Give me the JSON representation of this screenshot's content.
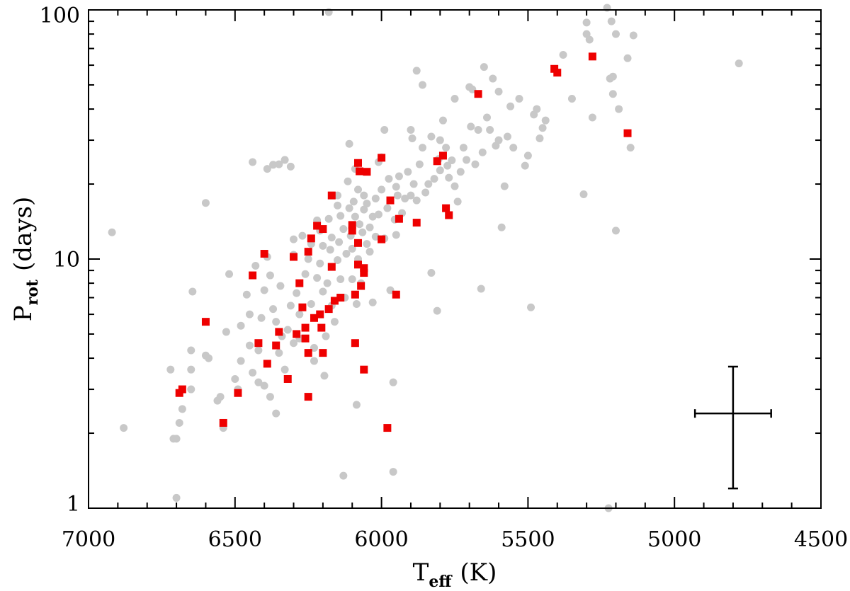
{
  "chart_data": {
    "type": "scatter",
    "xlabel": {
      "main": "T",
      "sub": "eff",
      "unit": "(K)"
    },
    "ylabel": {
      "main": "P",
      "sub": "rot",
      "unit": "(days)"
    },
    "xlim": [
      7000,
      4500
    ],
    "xaxis_reversed": true,
    "ylim": [
      1,
      100
    ],
    "yscale": "log",
    "x_ticks": [
      "7000",
      "6500",
      "6000",
      "5500",
      "5000",
      "4500"
    ],
    "y_ticks": [
      "1",
      "10",
      "100"
    ],
    "grid": false,
    "legend": "none",
    "colors": {
      "gray_series": "#c8c8c8",
      "red_series": "#ee0000",
      "axes": "#000000"
    },
    "series": [
      {
        "marker": "circle",
        "color": "#c8c8c8",
        "points": [
          [
            6920,
            12.8
          ],
          [
            6880,
            2.1
          ],
          [
            6720,
            3.6
          ],
          [
            6710,
            1.9
          ],
          [
            6700,
            1.9
          ],
          [
            6690,
            2.2
          ],
          [
            6680,
            2.5
          ],
          [
            6650,
            3.0
          ],
          [
            6650,
            3.6
          ],
          [
            6650,
            4.3
          ],
          [
            6645,
            7.4
          ],
          [
            6600,
            16.8
          ],
          [
            6600,
            4.1
          ],
          [
            6590,
            4.0
          ],
          [
            6560,
            2.7
          ],
          [
            6550,
            2.8
          ],
          [
            6540,
            2.1
          ],
          [
            6530,
            5.1
          ],
          [
            6520,
            8.7
          ],
          [
            6500,
            3.3
          ],
          [
            6490,
            3.0
          ],
          [
            6480,
            3.9
          ],
          [
            6480,
            5.4
          ],
          [
            6460,
            7.2
          ],
          [
            6450,
            6.0
          ],
          [
            6450,
            4.5
          ],
          [
            6440,
            3.5
          ],
          [
            6430,
            9.4
          ],
          [
            6420,
            4.3
          ],
          [
            6410,
            5.8
          ],
          [
            6400,
            3.1
          ],
          [
            6400,
            7.5
          ],
          [
            6390,
            23.0
          ],
          [
            6390,
            10.2
          ],
          [
            6380,
            8.6
          ],
          [
            6380,
            2.8
          ],
          [
            6370,
            6.3
          ],
          [
            6370,
            23.9
          ],
          [
            6360,
            5.6
          ],
          [
            6360,
            2.4
          ],
          [
            6350,
            4.2
          ],
          [
            6350,
            24.0
          ],
          [
            6345,
            7.8
          ],
          [
            6340,
            4.9
          ],
          [
            6330,
            3.6
          ],
          [
            6330,
            25.0
          ],
          [
            6320,
            5.2
          ],
          [
            6310,
            23.5
          ],
          [
            6310,
            6.5
          ],
          [
            6300,
            4.6
          ],
          [
            6300,
            10.4
          ],
          [
            6290,
            7.3
          ],
          [
            6280,
            6.0
          ],
          [
            6280,
            4.8
          ],
          [
            6270,
            12.4
          ],
          [
            6260,
            8.7
          ],
          [
            6260,
            5.3
          ],
          [
            6250,
            10.0
          ],
          [
            6240,
            11.5
          ],
          [
            6240,
            6.6
          ],
          [
            6230,
            4.4
          ],
          [
            6230,
            3.9
          ],
          [
            6220,
            8.4
          ],
          [
            6220,
            14.3
          ],
          [
            6210,
            9.6
          ],
          [
            6210,
            13.0
          ],
          [
            6200,
            7.4
          ],
          [
            6200,
            11.3
          ],
          [
            6195,
            3.4
          ],
          [
            6190,
            4.9
          ],
          [
            6185,
            8.0
          ],
          [
            6180,
            98.0
          ],
          [
            6180,
            14.5
          ],
          [
            6175,
            10.9
          ],
          [
            6170,
            12.2
          ],
          [
            6170,
            6.5
          ],
          [
            6160,
            5.6
          ],
          [
            6150,
            9.9
          ],
          [
            6150,
            16.4
          ],
          [
            6145,
            11.7
          ],
          [
            6140,
            8.3
          ],
          [
            6140,
            14.9
          ],
          [
            6130,
            1.35
          ],
          [
            6130,
            13.2
          ],
          [
            6125,
            7.0
          ],
          [
            6120,
            10.5
          ],
          [
            6115,
            20.5
          ],
          [
            6110,
            29.0
          ],
          [
            6110,
            16.0
          ],
          [
            6105,
            12.4
          ],
          [
            6100,
            8.3
          ],
          [
            6100,
            11.0
          ],
          [
            6095,
            17.0
          ],
          [
            6090,
            23.0
          ],
          [
            6090,
            14.8
          ],
          [
            6085,
            2.6
          ],
          [
            6085,
            6.6
          ],
          [
            6080,
            19.0
          ],
          [
            6080,
            10.0
          ],
          [
            6075,
            13.8
          ],
          [
            6070,
            22.5
          ],
          [
            6070,
            8.0
          ],
          [
            6065,
            12.8
          ],
          [
            6060,
            18.0
          ],
          [
            6060,
            15.8
          ],
          [
            6050,
            11.5
          ],
          [
            6050,
            16.7
          ],
          [
            6040,
            13.4
          ],
          [
            6040,
            10.7
          ],
          [
            6030,
            14.8
          ],
          [
            6030,
            6.7
          ],
          [
            6020,
            17.5
          ],
          [
            6020,
            12.3
          ],
          [
            6010,
            15.1
          ],
          [
            6010,
            24.5
          ],
          [
            6000,
            19.0
          ],
          [
            5990,
            33.0
          ],
          [
            5990,
            12.1
          ],
          [
            5980,
            16.0
          ],
          [
            5975,
            21.0
          ],
          [
            5970,
            7.5
          ],
          [
            5960,
            1.4
          ],
          [
            5960,
            3.2
          ],
          [
            5955,
            14.4
          ],
          [
            5950,
            12.5
          ],
          [
            5950,
            19.5
          ],
          [
            5945,
            18.0
          ],
          [
            5940,
            21.5
          ],
          [
            5930,
            15.3
          ],
          [
            5920,
            17.5
          ],
          [
            5910,
            22.4
          ],
          [
            5900,
            18.0
          ],
          [
            5895,
            30.5
          ],
          [
            5890,
            20.0
          ],
          [
            5880,
            57.0
          ],
          [
            5880,
            17.2
          ],
          [
            5870,
            24.0
          ],
          [
            5860,
            50.0
          ],
          [
            5860,
            28.0
          ],
          [
            5850,
            18.5
          ],
          [
            5840,
            20.0
          ],
          [
            5830,
            8.8
          ],
          [
            5830,
            31.0
          ],
          [
            5820,
            21.0
          ],
          [
            5810,
            6.2
          ],
          [
            5805,
            25.2
          ],
          [
            5800,
            22.7
          ],
          [
            5800,
            30.0
          ],
          [
            5790,
            36.0
          ],
          [
            5780,
            28.0
          ],
          [
            5775,
            23.7
          ],
          [
            5770,
            21.2
          ],
          [
            5760,
            24.9
          ],
          [
            5750,
            19.6
          ],
          [
            5740,
            17.0
          ],
          [
            5730,
            22.4
          ],
          [
            5720,
            28.0
          ],
          [
            5710,
            25.0
          ],
          [
            5700,
            49.0
          ],
          [
            5695,
            34.0
          ],
          [
            5690,
            48.0
          ],
          [
            5680,
            24.0
          ],
          [
            5670,
            33.0
          ],
          [
            5660,
            7.6
          ],
          [
            5655,
            26.8
          ],
          [
            5650,
            59.0
          ],
          [
            5640,
            37.0
          ],
          [
            5630,
            33.0
          ],
          [
            5620,
            53.0
          ],
          [
            5610,
            28.5
          ],
          [
            5600,
            30.0
          ],
          [
            5590,
            13.4
          ],
          [
            5580,
            19.6
          ],
          [
            5570,
            31.0
          ],
          [
            5560,
            41.0
          ],
          [
            5550,
            28.0
          ],
          [
            5530,
            44.0
          ],
          [
            5510,
            23.7
          ],
          [
            5490,
            6.4
          ],
          [
            5480,
            38.0
          ],
          [
            5470,
            40.0
          ],
          [
            5460,
            30.5
          ],
          [
            5450,
            33.6
          ],
          [
            5440,
            36.0
          ],
          [
            5380,
            66.0
          ],
          [
            5310,
            18.2
          ],
          [
            5300,
            89.0
          ],
          [
            5300,
            80.0
          ],
          [
            5290,
            76.0
          ],
          [
            5280,
            37.0
          ],
          [
            5220,
            53.0
          ],
          [
            5210,
            54.0
          ],
          [
            5210,
            46.0
          ],
          [
            5200,
            80.0
          ],
          [
            5200,
            13.0
          ],
          [
            5190,
            40.0
          ],
          [
            5160,
            64.0
          ],
          [
            5150,
            28.0
          ],
          [
            5140,
            79.0
          ],
          [
            5230,
            102.0
          ],
          [
            5215,
            90.0
          ],
          [
            5225,
            1.0
          ],
          [
            4780,
            61.0
          ],
          [
            6700,
            1.1
          ],
          [
            5500,
            26.0
          ],
          [
            5350,
            44.0
          ],
          [
            5600,
            47.0
          ],
          [
            5900,
            33.0
          ],
          [
            6440,
            24.5
          ],
          [
            6150,
            18.0
          ],
          [
            6000,
            25.6
          ],
          [
            5750,
            44.0
          ],
          [
            6420,
            3.2
          ],
          [
            6300,
            12.0
          ]
        ]
      },
      {
        "marker": "square",
        "color": "#ee0000",
        "points": [
          [
            6690,
            2.9
          ],
          [
            6680,
            3.0
          ],
          [
            6600,
            5.6
          ],
          [
            6540,
            2.2
          ],
          [
            6490,
            2.9
          ],
          [
            6440,
            8.6
          ],
          [
            6420,
            4.6
          ],
          [
            6400,
            10.5
          ],
          [
            6390,
            3.8
          ],
          [
            6360,
            4.5
          ],
          [
            6350,
            5.1
          ],
          [
            6320,
            3.3
          ],
          [
            6300,
            10.2
          ],
          [
            6290,
            5.0
          ],
          [
            6280,
            8.0
          ],
          [
            6270,
            6.4
          ],
          [
            6260,
            4.8
          ],
          [
            6260,
            5.3
          ],
          [
            6250,
            4.2
          ],
          [
            6250,
            10.7
          ],
          [
            6240,
            12.1
          ],
          [
            6230,
            5.8
          ],
          [
            6220,
            13.6
          ],
          [
            6210,
            6.0
          ],
          [
            6205,
            5.3
          ],
          [
            6200,
            4.2
          ],
          [
            6200,
            13.2
          ],
          [
            6180,
            6.3
          ],
          [
            6170,
            9.3
          ],
          [
            6170,
            18.0
          ],
          [
            6160,
            6.8
          ],
          [
            6140,
            7.0
          ],
          [
            6100,
            13.7
          ],
          [
            6100,
            13.0
          ],
          [
            6090,
            4.6
          ],
          [
            6090,
            7.2
          ],
          [
            6080,
            11.6
          ],
          [
            6080,
            9.5
          ],
          [
            6075,
            22.5
          ],
          [
            6080,
            24.3
          ],
          [
            6070,
            7.8
          ],
          [
            6060,
            8.8
          ],
          [
            6060,
            9.2
          ],
          [
            6050,
            22.4
          ],
          [
            6060,
            3.6
          ],
          [
            6000,
            12.0
          ],
          [
            6000,
            25.5
          ],
          [
            5980,
            2.1
          ],
          [
            5970,
            17.2
          ],
          [
            5950,
            7.2
          ],
          [
            5940,
            14.5
          ],
          [
            5880,
            14.0
          ],
          [
            5810,
            24.7
          ],
          [
            5790,
            26.0
          ],
          [
            5780,
            16.0
          ],
          [
            5770,
            15.0
          ],
          [
            5670,
            46.0
          ],
          [
            5410,
            58.0
          ],
          [
            5400,
            56.0
          ],
          [
            5280,
            65.0
          ],
          [
            5160,
            32.0
          ],
          [
            6250,
            2.8
          ]
        ]
      }
    ],
    "error_bar": {
      "x": 4800,
      "y": 2.4,
      "x_low": 4930,
      "x_high": 4670,
      "y_low": 1.2,
      "y_high": 3.7
    }
  }
}
